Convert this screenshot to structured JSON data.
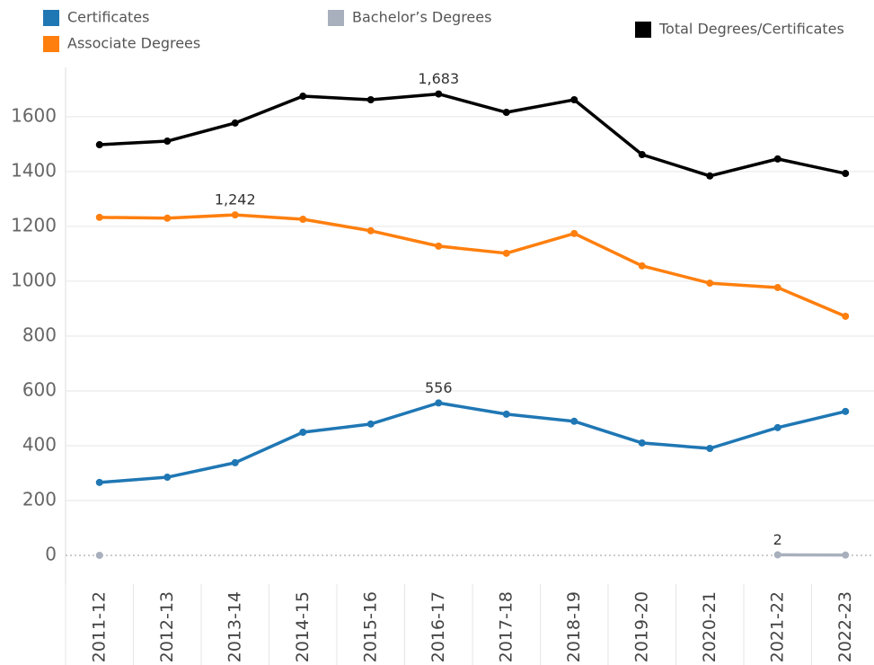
{
  "chart_data": {
    "type": "line",
    "categories": [
      "2011-12",
      "2012-13",
      "2013-14",
      "2014-15",
      "2015-16",
      "2016-17",
      "2017-18",
      "2018-19",
      "2019-20",
      "2020-21",
      "2021-22",
      "2022-23"
    ],
    "series": [
      {
        "name": "Certificates",
        "color": "#1f77b4",
        "values": [
          266,
          285,
          338,
          449,
          479,
          556,
          515,
          489,
          410,
          390,
          466,
          525
        ],
        "value_labels": [
          null,
          null,
          null,
          null,
          null,
          "556",
          null,
          null,
          null,
          null,
          null,
          null
        ]
      },
      {
        "name": "Associate Degrees",
        "color": "#ff7f0e",
        "values": [
          1233,
          1230,
          1242,
          1226,
          1184,
          1128,
          1102,
          1174,
          1056,
          993,
          977,
          872
        ],
        "value_labels": [
          null,
          null,
          "1,242",
          null,
          null,
          null,
          null,
          null,
          null,
          null,
          null,
          null
        ]
      },
      {
        "name": "Bachelor’s Degrees",
        "color": "#a8b0bd",
        "values": [
          0,
          null,
          null,
          null,
          null,
          null,
          null,
          null,
          null,
          null,
          2,
          1
        ],
        "value_labels": [
          null,
          null,
          null,
          null,
          null,
          null,
          null,
          null,
          null,
          null,
          "2",
          null
        ]
      },
      {
        "name": "Total Degrees/Certificates",
        "color": "#000000",
        "values": [
          1498,
          1511,
          1577,
          1675,
          1662,
          1683,
          1616,
          1662,
          1462,
          1384,
          1446,
          1393
        ],
        "value_labels": [
          null,
          null,
          null,
          null,
          null,
          "1,683",
          null,
          null,
          null,
          null,
          null,
          null
        ]
      }
    ],
    "ylim": [
      -105,
      1780
    ],
    "yticks": [
      0,
      200,
      400,
      600,
      800,
      1000,
      1200,
      1400,
      1600
    ],
    "grid": true
  }
}
